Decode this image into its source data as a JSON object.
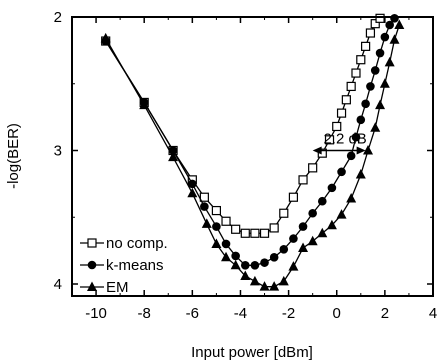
{
  "chart_data": {
    "type": "line",
    "xlabel": "Input power [dBm]",
    "ylabel": "-log(BER)",
    "xlim": [
      -11,
      4
    ],
    "ylim": [
      2,
      4.12
    ],
    "y_inverted": true,
    "grid": false,
    "legend_position": "bottom-left",
    "x_ticks": [
      -10,
      -8,
      -6,
      -4,
      -2,
      0,
      2,
      4
    ],
    "x_tick_labels": [
      "-10",
      "-8",
      "-6",
      "-4",
      "-2",
      "0",
      "2",
      "4"
    ],
    "y_ticks": [
      2,
      3,
      4
    ],
    "y_tick_labels": [
      "2",
      "3",
      "4"
    ],
    "series": [
      {
        "name": "no comp.",
        "marker": "open-square",
        "points": [
          [
            -9.6,
            2.18
          ],
          [
            -8,
            2.64
          ],
          [
            -6.8,
            3.0
          ],
          [
            -6,
            3.22
          ],
          [
            -5.5,
            3.35
          ],
          [
            -5,
            3.45
          ],
          [
            -4.6,
            3.53
          ],
          [
            -4.2,
            3.59
          ],
          [
            -3.8,
            3.62
          ],
          [
            -3.4,
            3.62
          ],
          [
            -3,
            3.62
          ],
          [
            -2.6,
            3.58
          ],
          [
            -2.2,
            3.47
          ],
          [
            -1.8,
            3.35
          ],
          [
            -1.4,
            3.22
          ],
          [
            -1,
            3.13
          ],
          [
            -0.6,
            3.02
          ],
          [
            -0.3,
            2.92
          ],
          [
            0,
            2.82
          ],
          [
            0.2,
            2.72
          ],
          [
            0.4,
            2.62
          ],
          [
            0.6,
            2.52
          ],
          [
            0.8,
            2.42
          ],
          [
            1,
            2.32
          ],
          [
            1.2,
            2.22
          ],
          [
            1.4,
            2.12
          ],
          [
            1.6,
            2.05
          ],
          [
            1.8,
            2.01
          ]
        ]
      },
      {
        "name": "k-means",
        "marker": "filled-circle",
        "points": [
          [
            -9.6,
            2.18
          ],
          [
            -8,
            2.64
          ],
          [
            -6.8,
            3.0
          ],
          [
            -6,
            3.25
          ],
          [
            -5.5,
            3.42
          ],
          [
            -5,
            3.57
          ],
          [
            -4.6,
            3.7
          ],
          [
            -4.2,
            3.79
          ],
          [
            -3.8,
            3.86
          ],
          [
            -3.4,
            3.86
          ],
          [
            -3,
            3.84
          ],
          [
            -2.6,
            3.8
          ],
          [
            -2.2,
            3.74
          ],
          [
            -1.8,
            3.66
          ],
          [
            -1.4,
            3.57
          ],
          [
            -1,
            3.47
          ],
          [
            -0.6,
            3.38
          ],
          [
            -0.2,
            3.28
          ],
          [
            0.2,
            3.16
          ],
          [
            0.6,
            3.04
          ],
          [
            0.8,
            2.9
          ],
          [
            1,
            2.77
          ],
          [
            1.2,
            2.65
          ],
          [
            1.4,
            2.52
          ],
          [
            1.6,
            2.4
          ],
          [
            1.8,
            2.27
          ],
          [
            2.0,
            2.15
          ],
          [
            2.2,
            2.06
          ],
          [
            2.4,
            2.01
          ]
        ]
      },
      {
        "name": "EM",
        "marker": "filled-triangle",
        "points": [
          [
            -9.6,
            2.16
          ],
          [
            -8,
            2.66
          ],
          [
            -6.8,
            3.05
          ],
          [
            -6,
            3.32
          ],
          [
            -5.4,
            3.55
          ],
          [
            -5,
            3.7
          ],
          [
            -4.6,
            3.8
          ],
          [
            -4.2,
            3.86
          ],
          [
            -3.8,
            3.94
          ],
          [
            -3.4,
            3.98
          ],
          [
            -3,
            4.02
          ],
          [
            -2.6,
            4.02
          ],
          [
            -2.2,
            3.98
          ],
          [
            -1.8,
            3.87
          ],
          [
            -1.4,
            3.73
          ],
          [
            -1.0,
            3.68
          ],
          [
            -0.6,
            3.62
          ],
          [
            -0.2,
            3.56
          ],
          [
            0.2,
            3.48
          ],
          [
            0.6,
            3.36
          ],
          [
            1.0,
            3.18
          ],
          [
            1.3,
            3.0
          ],
          [
            1.6,
            2.83
          ],
          [
            1.8,
            2.66
          ],
          [
            2.0,
            2.5
          ],
          [
            2.2,
            2.34
          ],
          [
            2.4,
            2.17
          ],
          [
            2.6,
            2.06
          ]
        ]
      }
    ],
    "annotations": [
      {
        "text": "2.2 dB",
        "arrow_from_x": -1.0,
        "arrow_to_x": 1.2,
        "arrow_y": 3.0
      }
    ]
  }
}
